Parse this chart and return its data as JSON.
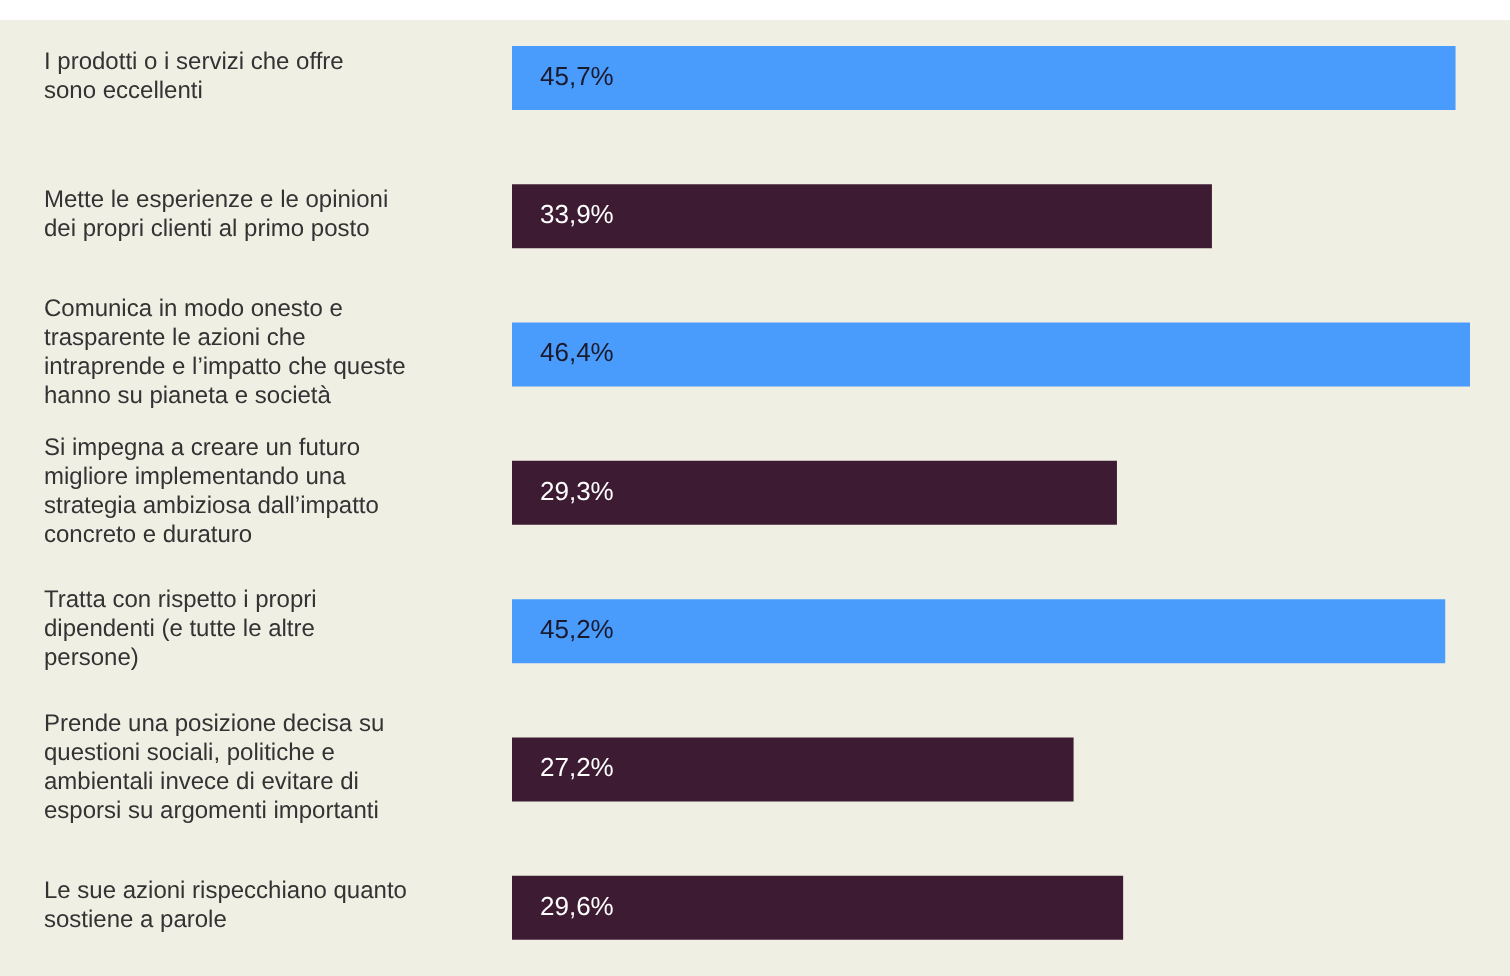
{
  "chart_data": {
    "type": "bar",
    "orientation": "horizontal",
    "categories": [
      "I prodotti o i servizi che offre sono eccellenti",
      "Mette le esperienze e le opinioni dei propri clienti al primo posto",
      "Comunica in modo onesto e trasparente le azioni che intraprende e l’impatto che queste hanno su pianeta e società",
      "Si impegna a creare un futuro migliore implementando una strategia ambiziosa dall’impatto concreto e duraturo",
      "Tratta con rispetto i propri dipendenti (e tutte le altre persone)",
      "Prende una posizione decisa su questioni sociali, politiche e ambientali invece di evitare di esporsi su argomenti importanti",
      "Le sue azioni rispecchiano quanto sostiene a parole"
    ],
    "values": [
      45.7,
      33.9,
      46.4,
      29.3,
      45.2,
      27.2,
      29.6
    ],
    "value_labels": [
      "45,7%",
      "33,9%",
      "46,4%",
      "29,3%",
      "45,2%",
      "27,2%",
      "29,6%"
    ],
    "colors": [
      "#4a9cfc",
      "#3d1c33",
      "#4a9cfc",
      "#3d1c33",
      "#4a9cfc",
      "#3d1c33",
      "#3d1c33"
    ]
  }
}
